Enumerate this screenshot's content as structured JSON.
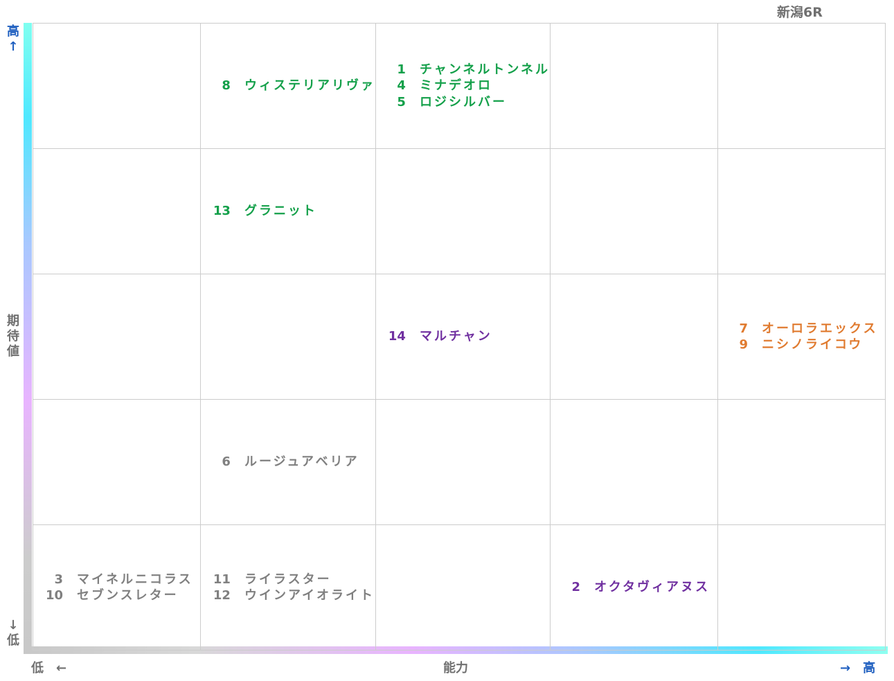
{
  "title": "新潟6R",
  "y_axis": {
    "high": "高↑",
    "label": "期待値",
    "low": "↓低"
  },
  "x_axis": {
    "low": "低　←",
    "label": "能力",
    "high": "→　高"
  },
  "grid": {
    "rows": [
      [
        [],
        [
          {
            "number": "8",
            "name": "ウィステリアリヴァ",
            "color": "#14a04a"
          }
        ],
        [
          {
            "number": "1",
            "name": "チャンネルトンネル",
            "color": "#14a04a"
          },
          {
            "number": "4",
            "name": "ミナデオロ",
            "color": "#14a04a"
          },
          {
            "number": "5",
            "name": "ロジシルバー",
            "color": "#14a04a"
          }
        ],
        [],
        []
      ],
      [
        [],
        [
          {
            "number": "13",
            "name": "グラニット",
            "color": "#14a04a"
          }
        ],
        [],
        [],
        []
      ],
      [
        [],
        [],
        [
          {
            "number": "14",
            "name": "マルチャン",
            "color": "#7030a0"
          }
        ],
        [],
        [
          {
            "number": "7",
            "name": "オーロラエックス",
            "color": "#e07b30"
          },
          {
            "number": "9",
            "name": "ニシノライコウ",
            "color": "#e07b30"
          }
        ]
      ],
      [
        [],
        [
          {
            "number": "6",
            "name": "ルージュアベリア",
            "color": "#808080"
          }
        ],
        [],
        [],
        []
      ],
      [
        [
          {
            "number": "3",
            "name": "マイネルニコラス",
            "color": "#808080"
          },
          {
            "number": "10",
            "name": "セブンスレター",
            "color": "#808080"
          }
        ],
        [
          {
            "number": "11",
            "name": "ライラスター",
            "color": "#808080"
          },
          {
            "number": "12",
            "name": "ウインアイオライト",
            "color": "#808080"
          }
        ],
        [],
        [
          {
            "number": "2",
            "name": "オクタヴィアヌス",
            "color": "#7030a0"
          }
        ],
        []
      ]
    ]
  }
}
